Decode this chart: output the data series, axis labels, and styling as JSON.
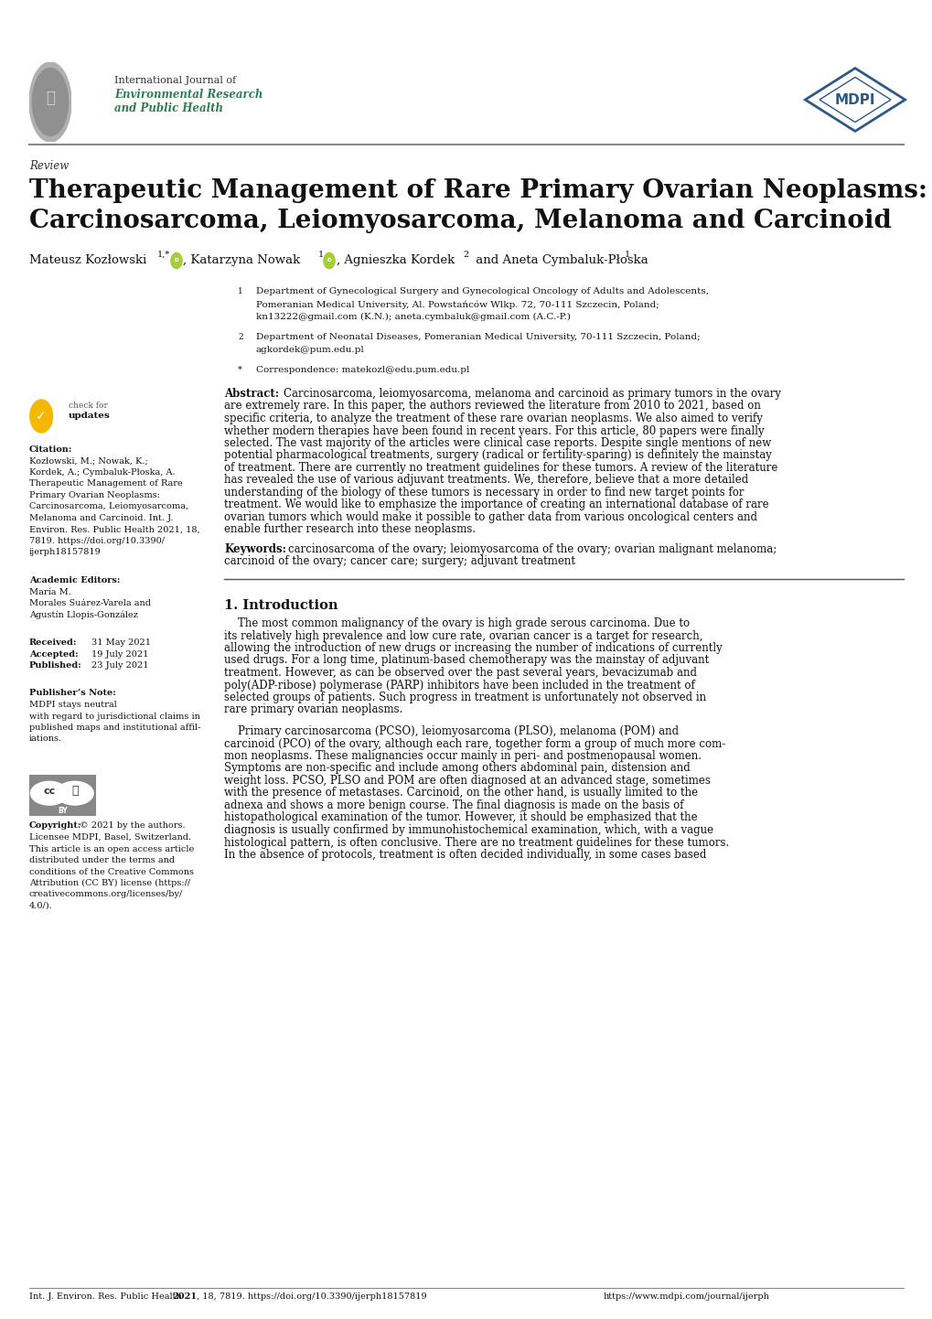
{
  "page_width": 10.2,
  "page_height": 14.42,
  "bg_color": "#ffffff",
  "header": {
    "journal_name_line1": "International Journal of",
    "journal_name_line2": "Environmental Research",
    "journal_name_line3": "and Public Health",
    "journal_name_color": "#2e7d4f",
    "mdpi_text": "MDPI"
  },
  "separator_color": "#666666",
  "review_label": "Review",
  "title_line1": "Therapeutic Management of Rare Primary Ovarian Neoplasms:",
  "title_line2": "Carcinosarcoma, Leiomyosarcoma, Melanoma and Carcinoid",
  "affiliations": [
    {
      "num": "1",
      "lines": [
        "Department of Gynecological Surgery and Gynecological Oncology of Adults and Adolescents,",
        "Pomeranian Medical University, Al. Powstańców Wlkp. 72, 70-111 Szczecin, Poland;",
        "kn13222@gmail.com (K.N.); aneta.cymbaluk@gmail.com (A.C.-P.)"
      ]
    },
    {
      "num": "2",
      "lines": [
        "Department of Neonatal Diseases, Pomeranian Medical University, 70-111 Szczecin, Poland;",
        "agkordek@pum.edu.pl"
      ]
    },
    {
      "num": "*",
      "lines": [
        "Correspondence: matekozl@edu.pum.edu.pl"
      ]
    }
  ],
  "abstract_first_line": "Carcinosarcoma, leiomyosarcoma, melanoma and carcinoid as primary tumors in the ovary",
  "abstract_lines": [
    "are extremely rare. In this paper, the authors reviewed the literature from 2010 to 2021, based on",
    "specific criteria, to analyze the treatment of these rare ovarian neoplasms. We also aimed to verify",
    "whether modern therapies have been found in recent years. For this article, 80 papers were finally",
    "selected. The vast majority of the articles were clinical case reports. Despite single mentions of new",
    "potential pharmacological treatments, surgery (radical or fertility-sparing) is definitely the mainstay",
    "of treatment. There are currently no treatment guidelines for these tumors. A review of the literature",
    "has revealed the use of various adjuvant treatments. We, therefore, believe that a more detailed",
    "understanding of the biology of these tumors is necessary in order to find new target points for",
    "treatment. We would like to emphasize the importance of creating an international database of rare",
    "ovarian tumors which would make it possible to gather data from various oncological centers and",
    "enable further research into these neoplasms."
  ],
  "keywords_first": "carcinosarcoma of the ovary; leiomyosarcoma of the ovary; ovarian malignant melanoma;",
  "keywords_second": "carcinoid of the ovary; cancer care; surgery; adjuvant treatment",
  "citation_lines": [
    "Kozłowski, M.; Nowak, K.;",
    "Kordek, A.; Cymbaluk-Płoska, A.",
    "Therapeutic Management of Rare",
    "Primary Ovarian Neoplasms:",
    "Carcinosarcoma, Leiomyosarcoma,",
    "Melanoma and Carcinoid. Int. J.",
    "Environ. Res. Public Health 2021, 18,",
    "7819. https://doi.org/10.3390/",
    "ijerph18157819"
  ],
  "ae_lines": [
    "María M.",
    "Morales Suárez-Varela and",
    "Agustín Llopis-González"
  ],
  "intro_lines1": [
    "    The most common malignancy of the ovary is high grade serous carcinoma. Due to",
    "its relatively high prevalence and low cure rate, ovarian cancer is a target for research,",
    "allowing the introduction of new drugs or increasing the number of indications of currently",
    "used drugs. For a long time, platinum-based chemotherapy was the mainstay of adjuvant",
    "treatment. However, as can be observed over the past several years, bevacizumab and",
    "poly(ADP-ribose) polymerase (PARP) inhibitors have been included in the treatment of",
    "selected groups of patients. Such progress in treatment is unfortunately not observed in",
    "rare primary ovarian neoplasms."
  ],
  "intro_lines2": [
    "    Primary carcinosarcoma (PCSO), leiomyosarcoma (PLSO), melanoma (POM) and",
    "carcinoid (PCO) of the ovary, although each rare, together form a group of much more com-",
    "mon neoplasms. These malignancies occur mainly in peri- and postmenopausal women.",
    "Symptoms are non-specific and include among others abdominal pain, distension and",
    "weight loss. PCSO, PLSO and POM are often diagnosed at an advanced stage, sometimes",
    "with the presence of metastases. Carcinoid, on the other hand, is usually limited to the",
    "adnexa and shows a more benign course. The final diagnosis is made on the basis of",
    "histopathological examination of the tumor. However, it should be emphasized that the",
    "diagnosis is usually confirmed by immunohistochemical examination, which, with a vague",
    "histological pattern, is often conclusive. There are no treatment guidelines for these tumors.",
    "In the absence of protocols, treatment is often decided individually, in some cases based"
  ],
  "copyright_lines": [
    "Licensee MDPI, Basel, Switzerland.",
    "This article is an open access article",
    "distributed under the terms and",
    "conditions of the Creative Commons",
    "Attribution (CC BY) license (https://",
    "creativecommons.org/licenses/by/",
    "4.0/)."
  ],
  "publisher_lines": [
    "MDPI stays neutral",
    "with regard to jurisdictional claims in",
    "published maps and institutional affil-",
    "iations."
  ]
}
